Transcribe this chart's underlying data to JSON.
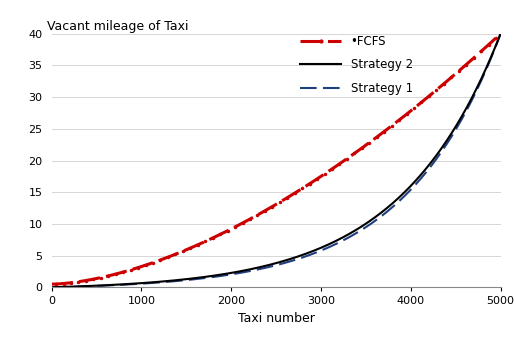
{
  "title": "Vacant mileage of Taxi",
  "xlabel": "Taxi number",
  "xlim": [
    0,
    5000
  ],
  "ylim": [
    0,
    40
  ],
  "xticks": [
    0,
    1000,
    2000,
    3000,
    4000,
    5000
  ],
  "yticks": [
    0,
    5,
    10,
    15,
    20,
    25,
    30,
    35,
    40
  ],
  "fcfs_color": "#cc0000",
  "strategy2_color": "#000000",
  "strategy1_color": "#1f3f7f",
  "background_color": "#ffffff",
  "legend_labels": [
    "•FCFS",
    "Strategy 2",
    "Strategy 1"
  ],
  "title_fontsize": 9,
  "label_fontsize": 9,
  "tick_fontsize": 8
}
